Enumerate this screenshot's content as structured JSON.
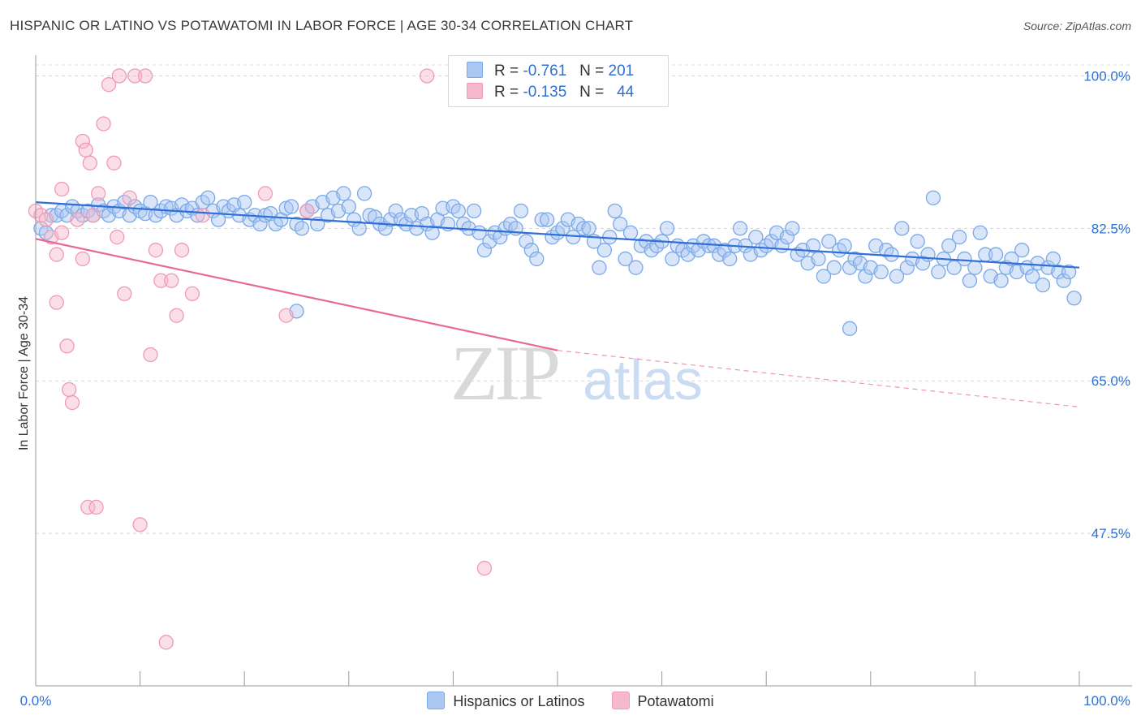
{
  "title": "HISPANIC OR LATINO VS POTAWATOMI IN LABOR FORCE | AGE 30-34 CORRELATION CHART",
  "source": "Source: ZipAtlas.com",
  "watermark": {
    "zip": "ZIP",
    "atlas": "atlas"
  },
  "legend": {
    "rows": [
      {
        "r_label": "R =",
        "r_value": "-0.761",
        "n_label": "N =",
        "n_value": "201",
        "color": "#aac8f2"
      },
      {
        "r_label": "R =",
        "r_value": "-0.135",
        "n_label": "N =",
        "n_value": "44",
        "color": "#f6b8cb"
      }
    ]
  },
  "chart_data": {
    "type": "scatter",
    "title": "HISPANIC OR LATINO VS POTAWATOMI IN LABOR FORCE | AGE 30-34 CORRELATION CHART",
    "xlabel": "",
    "ylabel": "In Labor Force | Age 30-34",
    "xlim": [
      0,
      100
    ],
    "ylim": [
      30,
      102
    ],
    "x_tick_labels": [
      "0.0%",
      "100.0%"
    ],
    "y_ticks": [
      47.5,
      65.0,
      82.5,
      100.0
    ],
    "y_tick_labels": [
      "47.5%",
      "65.0%",
      "82.5%",
      "100.0%"
    ],
    "grid": true,
    "legend_position": "top-center",
    "series": [
      {
        "name": "Hispanics or Latinos",
        "color": "#7aa8e8",
        "fill": "#aac8f2",
        "trend": {
          "x": [
            0,
            100
          ],
          "y": [
            85.5,
            78.0
          ],
          "color": "#2f6fd6"
        },
        "points": [
          [
            0.5,
            82.5
          ],
          [
            1,
            82.0
          ],
          [
            1.5,
            84.0
          ],
          [
            2,
            84.0
          ],
          [
            2.5,
            84.5
          ],
          [
            3,
            84.0
          ],
          [
            3.5,
            85.0
          ],
          [
            4,
            84.5
          ],
          [
            4.5,
            84.0
          ],
          [
            5,
            84.5
          ],
          [
            5.5,
            84.0
          ],
          [
            6,
            85.2
          ],
          [
            6.5,
            84.5
          ],
          [
            7,
            84.0
          ],
          [
            7.5,
            85.0
          ],
          [
            8,
            84.5
          ],
          [
            8.5,
            85.5
          ],
          [
            9,
            84.0
          ],
          [
            9.5,
            85.0
          ],
          [
            10,
            84.5
          ],
          [
            10.5,
            84.2
          ],
          [
            11,
            85.5
          ],
          [
            11.5,
            84.0
          ],
          [
            12,
            84.5
          ],
          [
            12.5,
            85.0
          ],
          [
            13,
            84.8
          ],
          [
            13.5,
            84.0
          ],
          [
            14,
            85.2
          ],
          [
            14.5,
            84.5
          ],
          [
            15,
            84.8
          ],
          [
            15.5,
            84.0
          ],
          [
            16,
            85.5
          ],
          [
            16.5,
            86.0
          ],
          [
            17,
            84.5
          ],
          [
            17.5,
            83.5
          ],
          [
            18,
            85.0
          ],
          [
            18.5,
            84.5
          ],
          [
            19,
            85.2
          ],
          [
            19.5,
            84.0
          ],
          [
            20,
            85.5
          ],
          [
            20.5,
            83.5
          ],
          [
            21,
            84.0
          ],
          [
            21.5,
            83.0
          ],
          [
            22,
            84.0
          ],
          [
            22.5,
            84.2
          ],
          [
            23,
            83.0
          ],
          [
            23.5,
            83.5
          ],
          [
            24,
            84.8
          ],
          [
            24.5,
            85.0
          ],
          [
            25,
            83.0
          ],
          [
            25.5,
            82.5
          ],
          [
            26,
            84.5
          ],
          [
            26.5,
            85.0
          ],
          [
            27,
            83.0
          ],
          [
            27.5,
            85.5
          ],
          [
            28,
            84.0
          ],
          [
            28.5,
            86.0
          ],
          [
            29,
            84.5
          ],
          [
            29.5,
            86.5
          ],
          [
            30,
            85.0
          ],
          [
            30.5,
            83.5
          ],
          [
            31,
            82.5
          ],
          [
            31.5,
            86.5
          ],
          [
            32,
            84.0
          ],
          [
            32.5,
            83.8
          ],
          [
            33,
            83.0
          ],
          [
            33.5,
            82.5
          ],
          [
            34,
            83.5
          ],
          [
            34.5,
            84.5
          ],
          [
            35,
            83.5
          ],
          [
            35.5,
            83.0
          ],
          [
            36,
            84.0
          ],
          [
            36.5,
            82.5
          ],
          [
            37,
            84.2
          ],
          [
            37.5,
            83.0
          ],
          [
            38,
            82.0
          ],
          [
            38.5,
            83.5
          ],
          [
            39,
            84.8
          ],
          [
            39.5,
            83.0
          ],
          [
            40,
            85.0
          ],
          [
            40.5,
            84.5
          ],
          [
            41,
            83.0
          ],
          [
            41.5,
            82.5
          ],
          [
            42,
            84.5
          ],
          [
            42.5,
            82.0
          ],
          [
            43,
            80.0
          ],
          [
            43.5,
            81.0
          ],
          [
            44,
            82.0
          ],
          [
            44.5,
            81.5
          ],
          [
            45,
            82.5
          ],
          [
            45.5,
            83.0
          ],
          [
            46,
            82.5
          ],
          [
            46.5,
            84.5
          ],
          [
            47,
            81.0
          ],
          [
            47.5,
            80.0
          ],
          [
            48,
            79.0
          ],
          [
            48.5,
            83.5
          ],
          [
            49,
            83.5
          ],
          [
            49.5,
            81.5
          ],
          [
            50,
            82.0
          ],
          [
            50.5,
            82.5
          ],
          [
            51,
            83.5
          ],
          [
            51.5,
            81.5
          ],
          [
            52,
            83.0
          ],
          [
            52.5,
            82.5
          ],
          [
            53,
            82.5
          ],
          [
            53.5,
            81.0
          ],
          [
            54,
            78.0
          ],
          [
            54.5,
            80.0
          ],
          [
            55,
            81.5
          ],
          [
            55.5,
            84.5
          ],
          [
            56,
            83.0
          ],
          [
            56.5,
            79.0
          ],
          [
            57,
            82.0
          ],
          [
            57.5,
            78.0
          ],
          [
            58,
            80.5
          ],
          [
            58.5,
            81.0
          ],
          [
            59,
            80.0
          ],
          [
            59.5,
            80.5
          ],
          [
            60,
            81.0
          ],
          [
            60.5,
            82.5
          ],
          [
            61,
            79.0
          ],
          [
            61.5,
            80.5
          ],
          [
            62,
            80.0
          ],
          [
            62.5,
            79.5
          ],
          [
            63,
            80.5
          ],
          [
            63.5,
            80.0
          ],
          [
            64,
            81.0
          ],
          [
            64.5,
            80.5
          ],
          [
            65,
            80.5
          ],
          [
            65.5,
            79.5
          ],
          [
            66,
            80.0
          ],
          [
            66.5,
            79.0
          ],
          [
            67,
            80.5
          ],
          [
            67.5,
            82.5
          ],
          [
            68,
            80.5
          ],
          [
            68.5,
            79.5
          ],
          [
            69,
            81.5
          ],
          [
            69.5,
            80.0
          ],
          [
            70,
            80.5
          ],
          [
            70.5,
            81.0
          ],
          [
            71,
            82.0
          ],
          [
            71.5,
            80.5
          ],
          [
            72,
            81.5
          ],
          [
            72.5,
            82.5
          ],
          [
            73,
            79.5
          ],
          [
            73.5,
            80.0
          ],
          [
            74,
            78.5
          ],
          [
            74.5,
            80.5
          ],
          [
            75,
            79.0
          ],
          [
            75.5,
            77.0
          ],
          [
            76,
            81.0
          ],
          [
            76.5,
            78.0
          ],
          [
            77,
            80.0
          ],
          [
            77.5,
            80.5
          ],
          [
            78,
            78.0
          ],
          [
            78.5,
            79.0
          ],
          [
            79,
            78.5
          ],
          [
            79.5,
            77.0
          ],
          [
            80,
            78.0
          ],
          [
            80.5,
            80.5
          ],
          [
            81,
            77.5
          ],
          [
            81.5,
            80.0
          ],
          [
            82,
            79.5
          ],
          [
            82.5,
            77.0
          ],
          [
            83,
            82.5
          ],
          [
            83.5,
            78.0
          ],
          [
            84,
            79.0
          ],
          [
            84.5,
            81.0
          ],
          [
            85,
            78.5
          ],
          [
            85.5,
            79.5
          ],
          [
            86,
            86.0
          ],
          [
            86.5,
            77.5
          ],
          [
            87,
            79.0
          ],
          [
            87.5,
            80.5
          ],
          [
            88,
            78.0
          ],
          [
            88.5,
            81.5
          ],
          [
            89,
            79.0
          ],
          [
            89.5,
            76.5
          ],
          [
            90,
            78.0
          ],
          [
            90.5,
            82.0
          ],
          [
            91,
            79.5
          ],
          [
            91.5,
            77.0
          ],
          [
            92,
            79.5
          ],
          [
            92.5,
            76.5
          ],
          [
            93,
            78.0
          ],
          [
            93.5,
            79.0
          ],
          [
            94,
            77.5
          ],
          [
            94.5,
            80.0
          ],
          [
            95,
            78.0
          ],
          [
            95.5,
            77.0
          ],
          [
            96,
            78.5
          ],
          [
            96.5,
            76.0
          ],
          [
            97,
            78.0
          ],
          [
            97.5,
            79.0
          ],
          [
            98,
            77.5
          ],
          [
            98.5,
            76.5
          ],
          [
            99,
            77.5
          ],
          [
            99.5,
            74.5
          ],
          [
            78,
            71.0
          ],
          [
            25,
            73.0
          ]
        ]
      },
      {
        "name": "Potawatomi",
        "color": "#ef9ab6",
        "fill": "#f6b8cb",
        "trend": {
          "x": [
            0,
            50,
            100
          ],
          "y": [
            81.3,
            68.5,
            62.0
          ],
          "color": "#e86a92"
        },
        "points": [
          [
            0,
            84.5
          ],
          [
            0.5,
            84.0
          ],
          [
            1,
            83.5
          ],
          [
            1.5,
            81.5
          ],
          [
            2,
            79.5
          ],
          [
            2.5,
            82.0
          ],
          [
            2,
            74.0
          ],
          [
            2.5,
            87.0
          ],
          [
            3,
            69.0
          ],
          [
            3.2,
            64.0
          ],
          [
            3.5,
            62.5
          ],
          [
            4,
            83.5
          ],
          [
            4.5,
            79.0
          ],
          [
            4.5,
            92.5
          ],
          [
            4.8,
            91.5
          ],
          [
            5,
            50.5
          ],
          [
            5.2,
            90.0
          ],
          [
            5.5,
            84.0
          ],
          [
            5.8,
            50.5
          ],
          [
            6,
            86.5
          ],
          [
            6.5,
            94.5
          ],
          [
            7,
            99.0
          ],
          [
            7.5,
            90.0
          ],
          [
            7.8,
            81.5
          ],
          [
            8,
            100.0
          ],
          [
            8.5,
            75.0
          ],
          [
            9,
            86.0
          ],
          [
            9.5,
            100.0
          ],
          [
            10,
            48.5
          ],
          [
            10.5,
            100.0
          ],
          [
            11,
            68.0
          ],
          [
            11.5,
            80.0
          ],
          [
            12,
            76.5
          ],
          [
            12.5,
            35.0
          ],
          [
            13,
            76.5
          ],
          [
            13.5,
            72.5
          ],
          [
            14,
            80.0
          ],
          [
            15,
            75.0
          ],
          [
            16,
            84.0
          ],
          [
            22,
            86.5
          ],
          [
            24,
            72.5
          ],
          [
            26,
            84.5
          ],
          [
            37.5,
            100.0
          ],
          [
            43,
            43.5
          ]
        ]
      }
    ]
  }
}
